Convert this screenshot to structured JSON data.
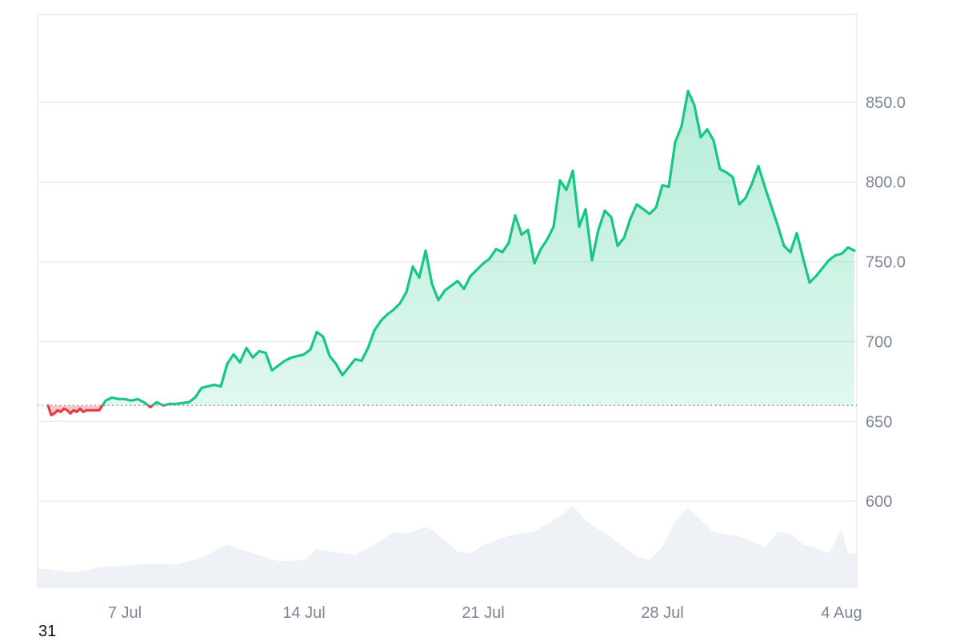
{
  "chart_data": {
    "type": "area",
    "title": "",
    "xlabel": "",
    "ylabel": "",
    "xlim": [
      "2024-07-04",
      "2024-08-04"
    ],
    "ylim": [
      546,
      905
    ],
    "baseline": 660,
    "grid": true,
    "legend": "none",
    "y_ticks": [
      {
        "value": 600,
        "label": "600"
      },
      {
        "value": 650,
        "label": "650"
      },
      {
        "value": 700,
        "label": "700"
      },
      {
        "value": 750,
        "label": "750.0"
      },
      {
        "value": 800,
        "label": "800.0"
      },
      {
        "value": 850,
        "label": "850.0"
      }
    ],
    "x_ticks": [
      {
        "date": "2024-07-07",
        "label": "7 Jul"
      },
      {
        "date": "2024-07-14",
        "label": "14 Jul"
      },
      {
        "date": "2024-07-21",
        "label": "21 Jul"
      },
      {
        "date": "2024-07-28",
        "label": "28 Jul"
      },
      {
        "date": "2024-08-04",
        "label": "4 Aug"
      }
    ],
    "corner_label": "31",
    "colors": {
      "up": "#16c784",
      "down": "#ea3943",
      "volume": "#eef1f5",
      "grid": "#e8ebef",
      "axis_text": "#7b8594",
      "baseline": "#888888"
    },
    "series": [
      {
        "values": [
          [
            "2024-07-04T00:00",
            660
          ],
          [
            "2024-07-04T03:00",
            654
          ],
          [
            "2024-07-04T06:00",
            655
          ],
          [
            "2024-07-04T09:00",
            657
          ],
          [
            "2024-07-04T12:00",
            656
          ],
          [
            "2024-07-04T15:00",
            658
          ],
          [
            "2024-07-04T18:00",
            657
          ],
          [
            "2024-07-04T21:00",
            655
          ],
          [
            "2024-07-05T00:00",
            657
          ],
          [
            "2024-07-05T03:00",
            656
          ],
          [
            "2024-07-05T06:00",
            658
          ],
          [
            "2024-07-05T09:00",
            656
          ],
          [
            "2024-07-05T12:00",
            657
          ],
          [
            "2024-07-06T00:00",
            657
          ],
          [
            "2024-07-06T06:00",
            663
          ],
          [
            "2024-07-06T12:00",
            665
          ],
          [
            "2024-07-06T18:00",
            664
          ],
          [
            "2024-07-07T00:00",
            664
          ],
          [
            "2024-07-07T06:00",
            663
          ],
          [
            "2024-07-07T12:00",
            664
          ],
          [
            "2024-07-07T18:00",
            662
          ],
          [
            "2024-07-08T00:00",
            659
          ],
          [
            "2024-07-08T06:00",
            662
          ],
          [
            "2024-07-08T12:00",
            660
          ],
          [
            "2024-07-08T18:00",
            661
          ],
          [
            "2024-07-09T00:00",
            661
          ],
          [
            "2024-07-09T12:00",
            662
          ],
          [
            "2024-07-09T18:00",
            665
          ],
          [
            "2024-07-10T00:00",
            671
          ],
          [
            "2024-07-10T12:00",
            673
          ],
          [
            "2024-07-10T18:00",
            672
          ],
          [
            "2024-07-11T00:00",
            686
          ],
          [
            "2024-07-11T06:00",
            692
          ],
          [
            "2024-07-11T12:00",
            687
          ],
          [
            "2024-07-11T18:00",
            696
          ],
          [
            "2024-07-12T00:00",
            690
          ],
          [
            "2024-07-12T06:00",
            694
          ],
          [
            "2024-07-12T12:00",
            693
          ],
          [
            "2024-07-12T18:00",
            682
          ],
          [
            "2024-07-13T00:00",
            685
          ],
          [
            "2024-07-13T06:00",
            688
          ],
          [
            "2024-07-13T12:00",
            690
          ],
          [
            "2024-07-13T18:00",
            691
          ],
          [
            "2024-07-14T00:00",
            692
          ],
          [
            "2024-07-14T06:00",
            695
          ],
          [
            "2024-07-14T12:00",
            706
          ],
          [
            "2024-07-14T18:00",
            703
          ],
          [
            "2024-07-15T00:00",
            691
          ],
          [
            "2024-07-15T06:00",
            686
          ],
          [
            "2024-07-15T12:00",
            679
          ],
          [
            "2024-07-15T18:00",
            684
          ],
          [
            "2024-07-16T00:00",
            689
          ],
          [
            "2024-07-16T06:00",
            688
          ],
          [
            "2024-07-16T12:00",
            696
          ],
          [
            "2024-07-16T18:00",
            707
          ],
          [
            "2024-07-17T00:00",
            713
          ],
          [
            "2024-07-17T06:00",
            717
          ],
          [
            "2024-07-17T12:00",
            720
          ],
          [
            "2024-07-17T18:00",
            724
          ],
          [
            "2024-07-18T00:00",
            731
          ],
          [
            "2024-07-18T06:00",
            747
          ],
          [
            "2024-07-18T12:00",
            740
          ],
          [
            "2024-07-18T18:00",
            757
          ],
          [
            "2024-07-19T00:00",
            736
          ],
          [
            "2024-07-19T06:00",
            726
          ],
          [
            "2024-07-19T12:00",
            732
          ],
          [
            "2024-07-19T18:00",
            735
          ],
          [
            "2024-07-20T00:00",
            738
          ],
          [
            "2024-07-20T06:00",
            733
          ],
          [
            "2024-07-20T12:00",
            741
          ],
          [
            "2024-07-20T18:00",
            745
          ],
          [
            "2024-07-21T00:00",
            749
          ],
          [
            "2024-07-21T06:00",
            752
          ],
          [
            "2024-07-21T12:00",
            758
          ],
          [
            "2024-07-21T18:00",
            756
          ],
          [
            "2024-07-22T00:00",
            762
          ],
          [
            "2024-07-22T06:00",
            779
          ],
          [
            "2024-07-22T12:00",
            767
          ],
          [
            "2024-07-22T18:00",
            770
          ],
          [
            "2024-07-23T00:00",
            749
          ],
          [
            "2024-07-23T06:00",
            758
          ],
          [
            "2024-07-23T12:00",
            764
          ],
          [
            "2024-07-23T18:00",
            772
          ],
          [
            "2024-07-24T00:00",
            801
          ],
          [
            "2024-07-24T06:00",
            795
          ],
          [
            "2024-07-24T12:00",
            807
          ],
          [
            "2024-07-24T18:00",
            772
          ],
          [
            "2024-07-25T00:00",
            783
          ],
          [
            "2024-07-25T06:00",
            751
          ],
          [
            "2024-07-25T12:00",
            770
          ],
          [
            "2024-07-25T18:00",
            782
          ],
          [
            "2024-07-26T00:00",
            778
          ],
          [
            "2024-07-26T06:00",
            760
          ],
          [
            "2024-07-26T12:00",
            765
          ],
          [
            "2024-07-26T18:00",
            777
          ],
          [
            "2024-07-27T00:00",
            786
          ],
          [
            "2024-07-27T06:00",
            783
          ],
          [
            "2024-07-27T12:00",
            780
          ],
          [
            "2024-07-27T18:00",
            784
          ],
          [
            "2024-07-28T00:00",
            798
          ],
          [
            "2024-07-28T06:00",
            797
          ],
          [
            "2024-07-28T12:00",
            825
          ],
          [
            "2024-07-28T18:00",
            835
          ],
          [
            "2024-07-29T00:00",
            857
          ],
          [
            "2024-07-29T06:00",
            848
          ],
          [
            "2024-07-29T12:00",
            828
          ],
          [
            "2024-07-29T18:00",
            833
          ],
          [
            "2024-07-30T00:00",
            826
          ],
          [
            "2024-07-30T06:00",
            808
          ],
          [
            "2024-07-30T12:00",
            806
          ],
          [
            "2024-07-30T18:00",
            803
          ],
          [
            "2024-07-31T00:00",
            786
          ],
          [
            "2024-07-31T06:00",
            790
          ],
          [
            "2024-07-31T12:00",
            799
          ],
          [
            "2024-07-31T18:00",
            810
          ],
          [
            "2024-08-01T00:00",
            797
          ],
          [
            "2024-08-01T06:00",
            785
          ],
          [
            "2024-08-01T12:00",
            773
          ],
          [
            "2024-08-01T18:00",
            760
          ],
          [
            "2024-08-02T00:00",
            756
          ],
          [
            "2024-08-02T06:00",
            768
          ],
          [
            "2024-08-02T12:00",
            752
          ],
          [
            "2024-08-02T18:00",
            737
          ],
          [
            "2024-08-03T00:00",
            741
          ],
          [
            "2024-08-03T06:00",
            746
          ],
          [
            "2024-08-03T12:00",
            751
          ],
          [
            "2024-08-03T18:00",
            754
          ],
          [
            "2024-08-04T00:00",
            755
          ],
          [
            "2024-08-04T06:00",
            759
          ],
          [
            "2024-08-04T12:00",
            757
          ]
        ]
      }
    ],
    "volume": {
      "values": [
        [
          "2024-07-04T00:00",
          0.2
        ],
        [
          "2024-07-05T00:00",
          0.16
        ],
        [
          "2024-07-06T00:00",
          0.22
        ],
        [
          "2024-07-07T00:00",
          0.24
        ],
        [
          "2024-07-08T00:00",
          0.26
        ],
        [
          "2024-07-09T00:00",
          0.25
        ],
        [
          "2024-07-10T00:00",
          0.33
        ],
        [
          "2024-07-11T00:00",
          0.48
        ],
        [
          "2024-07-12T00:00",
          0.38
        ],
        [
          "2024-07-13T00:00",
          0.29
        ],
        [
          "2024-07-14T00:00",
          0.3
        ],
        [
          "2024-07-14T12:00",
          0.43
        ],
        [
          "2024-07-15T00:00",
          0.4
        ],
        [
          "2024-07-16T00:00",
          0.36
        ],
        [
          "2024-07-17T00:00",
          0.52
        ],
        [
          "2024-07-17T12:00",
          0.62
        ],
        [
          "2024-07-18T00:00",
          0.6
        ],
        [
          "2024-07-18T18:00",
          0.68
        ],
        [
          "2024-07-19T00:00",
          0.65
        ],
        [
          "2024-07-20T00:00",
          0.4
        ],
        [
          "2024-07-20T12:00",
          0.38
        ],
        [
          "2024-07-21T00:00",
          0.47
        ],
        [
          "2024-07-22T00:00",
          0.58
        ],
        [
          "2024-07-23T00:00",
          0.63
        ],
        [
          "2024-07-24T00:00",
          0.8
        ],
        [
          "2024-07-24T12:00",
          0.92
        ],
        [
          "2024-07-25T00:00",
          0.75
        ],
        [
          "2024-07-26T00:00",
          0.56
        ],
        [
          "2024-07-27T00:00",
          0.34
        ],
        [
          "2024-07-27T12:00",
          0.3
        ],
        [
          "2024-07-28T00:00",
          0.45
        ],
        [
          "2024-07-28T12:00",
          0.75
        ],
        [
          "2024-07-29T00:00",
          0.9
        ],
        [
          "2024-07-30T00:00",
          0.62
        ],
        [
          "2024-07-31T00:00",
          0.57
        ],
        [
          "2024-08-01T00:00",
          0.45
        ],
        [
          "2024-08-01T12:00",
          0.62
        ],
        [
          "2024-08-02T00:00",
          0.6
        ],
        [
          "2024-08-02T12:00",
          0.48
        ],
        [
          "2024-08-03T00:00",
          0.44
        ],
        [
          "2024-08-03T12:00",
          0.38
        ],
        [
          "2024-08-04T00:00",
          0.65
        ],
        [
          "2024-08-04T06:00",
          0.38
        ],
        [
          "2024-08-04T12:00",
          0.37
        ]
      ]
    }
  }
}
